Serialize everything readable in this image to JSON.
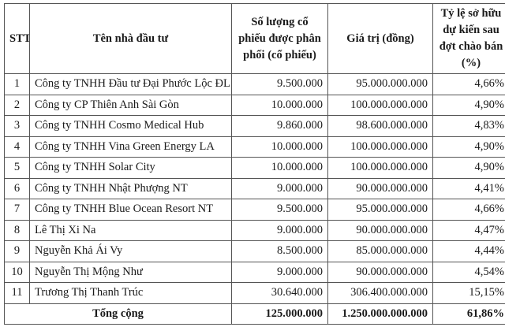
{
  "headers": {
    "stt": "STT",
    "investor": "Tên nhà đầu tư",
    "shares": "Số lượng cổ phiếu được phân phối (cổ phiếu)",
    "value": "Giá trị (đồng)",
    "ownership": "Tỷ lệ sở hữu dự kiến sau đợt chào bán (%)"
  },
  "rows": [
    {
      "stt": "1",
      "name": "Công ty TNHH Đầu tư Đại Phước Lộc ĐL",
      "shares": "9.500.000",
      "value": "95.000.000.000",
      "pct": "4,66%"
    },
    {
      "stt": "2",
      "name": "Công ty CP Thiên Anh Sài Gòn",
      "shares": "10.000.000",
      "value": "100.000.000.000",
      "pct": "4,90%"
    },
    {
      "stt": "3",
      "name": "Công ty TNHH Cosmo Medical Hub",
      "shares": "9.860.000",
      "value": "98.600.000.000",
      "pct": "4,83%"
    },
    {
      "stt": "4",
      "name": "Công ty TNHH Vina Green Energy LA",
      "shares": "10.000.000",
      "value": "100.000.000.000",
      "pct": "4,90%"
    },
    {
      "stt": "5",
      "name": "Công ty TNHH Solar City",
      "shares": "10.000.000",
      "value": "100.000.000.000",
      "pct": "4,90%"
    },
    {
      "stt": "6",
      "name": "Công ty TNHH Nhật Phượng NT",
      "shares": "9.000.000",
      "value": "90.000.000.000",
      "pct": "4,41%"
    },
    {
      "stt": "7",
      "name": "Công ty TNHH Blue Ocean Resort NT",
      "shares": "9.500.000",
      "value": "95.000.000.000",
      "pct": "4,66%"
    },
    {
      "stt": "8",
      "name": "Lê Thị Xi Na",
      "shares": "9.000.000",
      "value": "90.000.000.000",
      "pct": "4,47%"
    },
    {
      "stt": "9",
      "name": "Nguyễn Khả Ái Vy",
      "shares": "8.500.000",
      "value": "85.000.000.000",
      "pct": "4,44%"
    },
    {
      "stt": "10",
      "name": "Nguyễn Thị Mộng Như",
      "shares": "9.000.000",
      "value": "90.000.000.000",
      "pct": "4,54%"
    },
    {
      "stt": "11",
      "name": "Trương Thị Thanh Trúc",
      "shares": "30.640.000",
      "value": "306.400.000.000",
      "pct": "15,15%"
    }
  ],
  "total": {
    "label": "Tổng cộng",
    "shares": "125.000.000",
    "value": "1.250.000.000.000",
    "pct": "61,86%"
  }
}
